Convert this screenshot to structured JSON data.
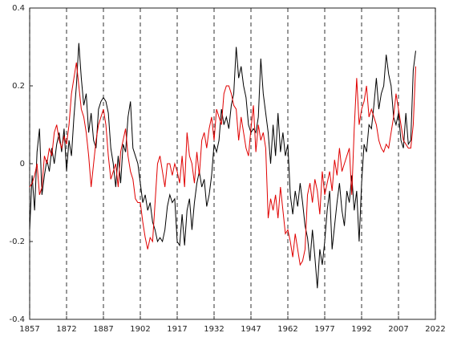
{
  "chart_data": {
    "type": "line",
    "x": [
      1857,
      1858,
      1859,
      1860,
      1861,
      1862,
      1863,
      1864,
      1865,
      1866,
      1867,
      1868,
      1869,
      1870,
      1871,
      1872,
      1873,
      1874,
      1875,
      1876,
      1877,
      1878,
      1879,
      1880,
      1881,
      1882,
      1883,
      1884,
      1885,
      1886,
      1887,
      1888,
      1889,
      1890,
      1891,
      1892,
      1893,
      1894,
      1895,
      1896,
      1897,
      1898,
      1899,
      1900,
      1901,
      1902,
      1903,
      1904,
      1905,
      1906,
      1907,
      1908,
      1909,
      1910,
      1911,
      1912,
      1913,
      1914,
      1915,
      1916,
      1917,
      1918,
      1919,
      1920,
      1921,
      1922,
      1923,
      1924,
      1925,
      1926,
      1927,
      1928,
      1929,
      1930,
      1931,
      1932,
      1933,
      1934,
      1935,
      1936,
      1937,
      1938,
      1939,
      1940,
      1941,
      1942,
      1943,
      1944,
      1945,
      1946,
      1947,
      1948,
      1949,
      1950,
      1951,
      1952,
      1953,
      1954,
      1955,
      1956,
      1957,
      1958,
      1959,
      1960,
      1961,
      1962,
      1963,
      1964,
      1965,
      1966,
      1967,
      1968,
      1969,
      1970,
      1971,
      1972,
      1973,
      1974,
      1975,
      1976,
      1977,
      1978,
      1979,
      1980,
      1981,
      1982,
      1983,
      1984,
      1985,
      1986,
      1987,
      1988,
      1989,
      1990,
      1991,
      1992,
      1993,
      1994,
      1995,
      1996,
      1997,
      1998,
      1999,
      2000,
      2001,
      2002,
      2003,
      2004,
      2005,
      2006,
      2007,
      2008,
      2009,
      2010,
      2011,
      2012,
      2013,
      2014
    ],
    "series": [
      {
        "color": "#000000",
        "values": [
          -0.17,
          -0.03,
          -0.12,
          0.03,
          0.09,
          -0.08,
          -0.03,
          0.01,
          -0.02,
          0.04,
          0.0,
          0.05,
          0.08,
          0.03,
          0.09,
          -0.02,
          0.06,
          0.02,
          0.12,
          0.2,
          0.31,
          0.22,
          0.15,
          0.18,
          0.08,
          0.13,
          0.06,
          0.04,
          0.14,
          0.16,
          0.17,
          0.16,
          0.13,
          0.04,
          0.0,
          -0.06,
          0.02,
          -0.05,
          0.05,
          0.03,
          0.12,
          0.16,
          0.04,
          0.02,
          0.0,
          -0.05,
          -0.1,
          -0.08,
          -0.12,
          -0.1,
          -0.15,
          -0.17,
          -0.2,
          -0.19,
          -0.2,
          -0.17,
          -0.11,
          -0.08,
          -0.1,
          -0.09,
          -0.2,
          -0.21,
          -0.13,
          -0.21,
          -0.12,
          -0.09,
          -0.17,
          -0.1,
          -0.05,
          -0.02,
          -0.06,
          -0.04,
          -0.11,
          -0.08,
          -0.03,
          0.05,
          0.03,
          0.06,
          0.14,
          0.1,
          0.12,
          0.09,
          0.15,
          0.18,
          0.3,
          0.22,
          0.25,
          0.2,
          0.17,
          0.1,
          0.08,
          0.09,
          0.08,
          0.12,
          0.27,
          0.18,
          0.13,
          0.08,
          0.0,
          0.1,
          0.02,
          0.13,
          0.03,
          0.08,
          0.02,
          0.05,
          -0.08,
          -0.13,
          -0.07,
          -0.11,
          -0.05,
          -0.1,
          -0.16,
          -0.19,
          -0.25,
          -0.17,
          -0.24,
          -0.32,
          -0.22,
          -0.26,
          -0.2,
          -0.12,
          -0.07,
          -0.22,
          -0.16,
          -0.1,
          -0.05,
          -0.12,
          -0.16,
          -0.07,
          -0.1,
          -0.03,
          -0.12,
          -0.07,
          -0.2,
          -0.05,
          0.05,
          0.03,
          0.1,
          0.09,
          0.15,
          0.22,
          0.14,
          0.18,
          0.2,
          0.28,
          0.23,
          0.2,
          0.12,
          0.1,
          0.13,
          0.06,
          0.04,
          0.13,
          0.05,
          0.06,
          0.24,
          0.29
        ]
      },
      {
        "color": "#e00000",
        "values": [
          -0.06,
          -0.05,
          -0.03,
          0.0,
          -0.08,
          -0.06,
          0.02,
          0.0,
          0.04,
          0.02,
          0.08,
          0.1,
          0.06,
          0.04,
          0.07,
          0.05,
          0.1,
          0.18,
          0.22,
          0.26,
          0.2,
          0.14,
          0.12,
          0.08,
          0.02,
          -0.06,
          0.0,
          0.06,
          0.1,
          0.12,
          0.14,
          0.1,
          0.02,
          -0.04,
          -0.02,
          0.0,
          -0.06,
          0.03,
          0.06,
          0.09,
          0.02,
          -0.02,
          -0.04,
          -0.09,
          -0.1,
          -0.1,
          -0.15,
          -0.19,
          -0.22,
          -0.19,
          -0.2,
          -0.1,
          0.0,
          0.02,
          -0.02,
          -0.06,
          0.0,
          0.0,
          -0.03,
          0.0,
          -0.02,
          -0.05,
          0.02,
          -0.06,
          0.08,
          0.02,
          0.0,
          -0.05,
          0.03,
          -0.03,
          0.06,
          0.08,
          0.04,
          0.09,
          0.12,
          0.06,
          0.14,
          0.12,
          0.1,
          0.18,
          0.2,
          0.2,
          0.18,
          0.15,
          0.14,
          0.06,
          0.12,
          0.08,
          0.04,
          0.02,
          0.09,
          0.15,
          0.03,
          0.1,
          0.06,
          0.08,
          0.04,
          -0.14,
          -0.09,
          -0.12,
          -0.08,
          -0.14,
          -0.06,
          -0.12,
          -0.18,
          -0.17,
          -0.2,
          -0.24,
          -0.18,
          -0.22,
          -0.26,
          -0.25,
          -0.22,
          -0.08,
          -0.05,
          -0.1,
          -0.04,
          -0.07,
          -0.13,
          -0.02,
          -0.08,
          -0.05,
          -0.02,
          -0.07,
          0.01,
          -0.03,
          0.04,
          -0.02,
          0.0,
          0.02,
          0.04,
          -0.08,
          0.09,
          0.22,
          0.1,
          0.14,
          0.16,
          0.2,
          0.12,
          0.14,
          0.12,
          0.1,
          0.06,
          0.04,
          0.03,
          0.05,
          0.04,
          0.08,
          0.12,
          0.18,
          0.14,
          0.1,
          0.06,
          0.05,
          0.04,
          0.04,
          0.1,
          0.25
        ]
      }
    ],
    "xlim": [
      1857,
      2022
    ],
    "xticks": [
      1857,
      1872,
      1887,
      1902,
      1917,
      1932,
      1947,
      1962,
      1977,
      1992,
      2007,
      2022
    ],
    "ylim": [
      -0.4,
      0.4
    ],
    "yticks": [
      -0.4,
      -0.2,
      0,
      0.2,
      0.4
    ],
    "grid": "x"
  }
}
